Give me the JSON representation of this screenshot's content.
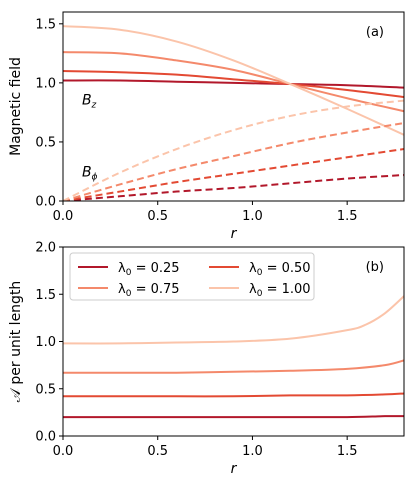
{
  "colors": {
    "lambda_0_25": "#b2182b",
    "lambda_0_50": "#e34a33",
    "lambda_0_75": "#f4896b",
    "lambda_1_00": "#fbc4aa"
  },
  "chart_data": [
    {
      "type": "line",
      "panel": "(a)",
      "xlabel": "r",
      "ylabel": "Magnetic field",
      "xlim": [
        0.0,
        1.8
      ],
      "ylim": [
        0.0,
        1.6
      ],
      "xticks": [
        "0.0",
        "0.5",
        "1.0",
        "1.5"
      ],
      "yticks": [
        "0.0",
        "0.5",
        "1.0",
        "1.5"
      ],
      "grid": false,
      "annotations": [
        {
          "text": "B",
          "sub": "z",
          "x": 0.1,
          "y": 0.86
        },
        {
          "text": "B",
          "sub": "ϕ",
          "x": 0.1,
          "y": 0.25
        }
      ],
      "series": [
        {
          "component": "B_z",
          "style": "solid",
          "color_key": "lambda_0_25",
          "x": [
            0,
            0.3,
            0.6,
            0.9,
            1.2,
            1.5,
            1.8
          ],
          "y": [
            1.02,
            1.02,
            1.01,
            1.0,
            0.99,
            0.98,
            0.96
          ]
        },
        {
          "component": "B_z",
          "style": "solid",
          "color_key": "lambda_0_50",
          "x": [
            0,
            0.3,
            0.6,
            0.9,
            1.2,
            1.5,
            1.8
          ],
          "y": [
            1.1,
            1.09,
            1.07,
            1.03,
            0.99,
            0.94,
            0.88
          ]
        },
        {
          "component": "B_z",
          "style": "solid",
          "color_key": "lambda_0_75",
          "x": [
            0,
            0.3,
            0.6,
            0.9,
            1.2,
            1.5,
            1.8
          ],
          "y": [
            1.26,
            1.25,
            1.19,
            1.11,
            0.99,
            0.87,
            0.76
          ]
        },
        {
          "component": "B_z",
          "style": "solid",
          "color_key": "lambda_1_00",
          "x": [
            0,
            0.3,
            0.6,
            0.9,
            1.2,
            1.5,
            1.8
          ],
          "y": [
            1.48,
            1.45,
            1.35,
            1.19,
            0.99,
            0.78,
            0.56
          ]
        },
        {
          "component": "B_phi",
          "style": "dashed",
          "color_key": "lambda_0_25",
          "x": [
            0,
            0.3,
            0.6,
            0.9,
            1.2,
            1.5,
            1.8
          ],
          "y": [
            0.0,
            0.04,
            0.08,
            0.11,
            0.15,
            0.19,
            0.22
          ]
        },
        {
          "component": "B_phi",
          "style": "dashed",
          "color_key": "lambda_0_50",
          "x": [
            0,
            0.3,
            0.6,
            0.9,
            1.2,
            1.5,
            1.8
          ],
          "y": [
            0.0,
            0.08,
            0.16,
            0.23,
            0.3,
            0.37,
            0.44
          ]
        },
        {
          "component": "B_phi",
          "style": "dashed",
          "color_key": "lambda_0_75",
          "x": [
            0,
            0.3,
            0.6,
            0.9,
            1.2,
            1.5,
            1.8
          ],
          "y": [
            0.0,
            0.14,
            0.27,
            0.38,
            0.49,
            0.58,
            0.66
          ]
        },
        {
          "component": "B_phi",
          "style": "dashed",
          "color_key": "lambda_1_00",
          "x": [
            0,
            0.3,
            0.6,
            0.9,
            1.2,
            1.5,
            1.8
          ],
          "y": [
            0.0,
            0.24,
            0.44,
            0.6,
            0.72,
            0.8,
            0.85
          ]
        }
      ]
    },
    {
      "type": "line",
      "panel": "(b)",
      "xlabel": "r",
      "ylabel": "𝒜 per unit length",
      "xlim": [
        0.0,
        1.8
      ],
      "ylim": [
        0.0,
        2.0
      ],
      "xticks": [
        "0.0",
        "0.5",
        "1.0",
        "1.5"
      ],
      "yticks": [
        "0.0",
        "0.5",
        "1.0",
        "1.5",
        "2.0"
      ],
      "grid": false,
      "legend": {
        "placement": "top-left",
        "columns": 2
      },
      "series": [
        {
          "name": "λ0 = 0.25",
          "label_prefix": "λ",
          "label_sub": "0",
          "label_value": " = 0.25",
          "color_key": "lambda_0_25",
          "x": [
            0,
            0.3,
            0.6,
            0.9,
            1.2,
            1.5,
            1.7,
            1.8
          ],
          "y": [
            0.2,
            0.2,
            0.2,
            0.2,
            0.2,
            0.2,
            0.21,
            0.21
          ]
        },
        {
          "name": "λ0 = 0.75",
          "label_prefix": "λ",
          "label_sub": "0",
          "label_value": " = 0.75",
          "color_key": "lambda_0_75",
          "x": [
            0,
            0.3,
            0.6,
            0.9,
            1.2,
            1.5,
            1.7,
            1.8
          ],
          "y": [
            0.67,
            0.67,
            0.67,
            0.68,
            0.69,
            0.71,
            0.75,
            0.8
          ]
        },
        {
          "name": "λ0 = 0.50",
          "label_prefix": "λ",
          "label_sub": "0",
          "label_value": " = 0.50",
          "color_key": "lambda_0_50",
          "x": [
            0,
            0.3,
            0.6,
            0.9,
            1.2,
            1.5,
            1.7,
            1.8
          ],
          "y": [
            0.42,
            0.42,
            0.42,
            0.42,
            0.43,
            0.43,
            0.44,
            0.45
          ]
        },
        {
          "name": "λ0 = 1.00",
          "label_prefix": "λ",
          "label_sub": "0",
          "label_value": " = 1.00",
          "color_key": "lambda_1_00",
          "x": [
            0,
            0.3,
            0.6,
            0.9,
            1.2,
            1.5,
            1.6,
            1.7,
            1.8
          ],
          "y": [
            0.98,
            0.98,
            0.99,
            1.0,
            1.03,
            1.12,
            1.18,
            1.3,
            1.48
          ]
        }
      ]
    }
  ]
}
